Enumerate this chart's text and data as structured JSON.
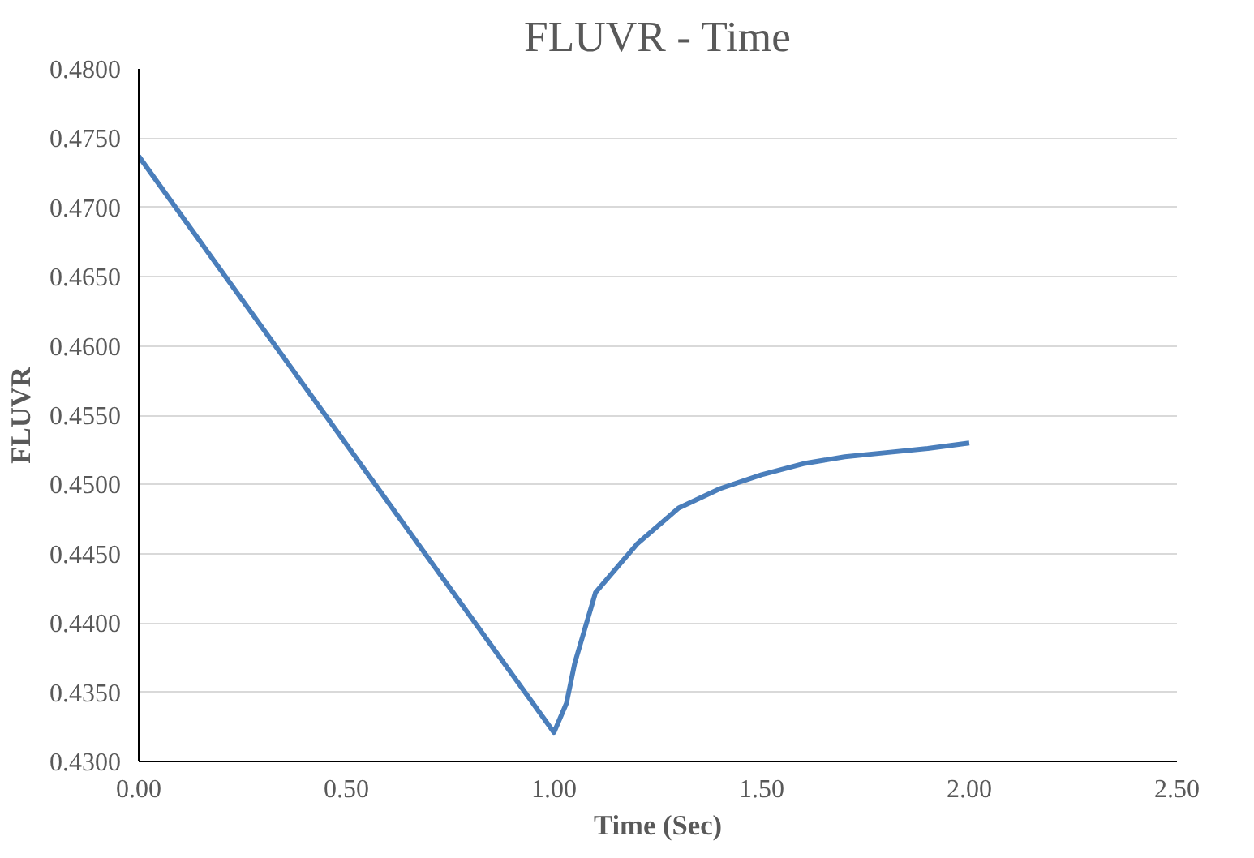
{
  "chart_data": {
    "type": "line",
    "title": "FLUVR - Time",
    "xlabel": "Time (Sec)",
    "ylabel": "FLUVR",
    "series": [
      {
        "color": "#4a7ebb",
        "x": [
          0.0,
          1.0,
          1.03,
          1.05,
          1.1,
          1.2,
          1.3,
          1.4,
          1.5,
          1.6,
          1.7,
          1.8,
          1.9,
          2.0
        ],
        "values": [
          0.4737,
          0.4321,
          0.4342,
          0.4371,
          0.4422,
          0.4457,
          0.4483,
          0.4497,
          0.4507,
          0.4515,
          0.452,
          0.4523,
          0.4526,
          0.453
        ]
      }
    ],
    "xlim": [
      0,
      2.5
    ],
    "ylim": [
      0.43,
      0.48
    ],
    "xticks": [
      {
        "value": 0,
        "label": "0.00"
      },
      {
        "value": 0.5,
        "label": "0.50"
      },
      {
        "value": 1,
        "label": "1.00"
      },
      {
        "value": 1.5,
        "label": "1.50"
      },
      {
        "value": 2,
        "label": "2.00"
      },
      {
        "value": 2.5,
        "label": "2.50"
      }
    ],
    "yticks": [
      {
        "value": 0.43,
        "label": "0.4300"
      },
      {
        "value": 0.435,
        "label": "0.4350"
      },
      {
        "value": 0.44,
        "label": "0.4400"
      },
      {
        "value": 0.445,
        "label": "0.4450"
      },
      {
        "value": 0.45,
        "label": "0.4500"
      },
      {
        "value": 0.455,
        "label": "0.4550"
      },
      {
        "value": 0.46,
        "label": "0.4600"
      },
      {
        "value": 0.465,
        "label": "0.4650"
      },
      {
        "value": 0.47,
        "label": "0.4700"
      },
      {
        "value": 0.475,
        "label": "0.4750"
      },
      {
        "value": 0.48,
        "label": "0.4800"
      }
    ],
    "grid": "y",
    "marker": "none",
    "line_style": "solid"
  }
}
